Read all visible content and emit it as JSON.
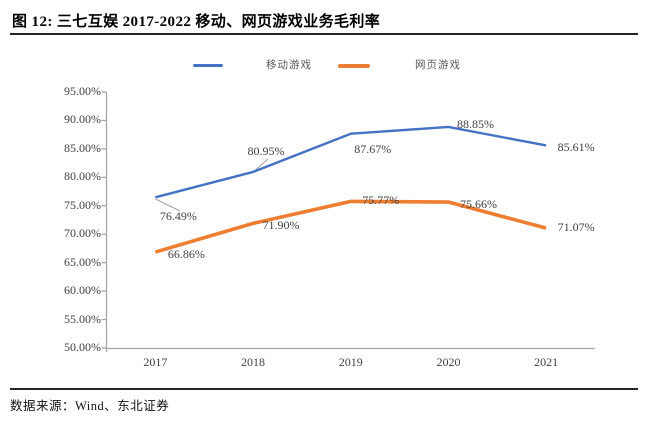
{
  "title": "图 12: 三七互娱 2017-2022 移动、网页游戏业务毛利率",
  "source": "数据来源：Wind、东北证券",
  "colors": {
    "mobile_series": "#4472C4",
    "web_series": "#ED7D31",
    "axis": "#A6A6A6",
    "data_label": "#404040",
    "rule": "#262626"
  },
  "chart_data": {
    "type": "line",
    "categories": [
      "2017",
      "2018",
      "2019",
      "2020",
      "2021"
    ],
    "series": [
      {
        "name": "移动游戏",
        "color": "#4472C4",
        "values": [
          76.49,
          80.95,
          87.67,
          88.85,
          85.61
        ],
        "labels": [
          "76.49%",
          "80.95%",
          "87.67%",
          "88.85%",
          "85.61%"
        ]
      },
      {
        "name": "网页游戏",
        "color": "#ED7D31",
        "values": [
          66.86,
          71.9,
          75.77,
          75.66,
          71.07
        ],
        "labels": [
          "66.86%",
          "71.90%",
          "75.77%",
          "75.66%",
          "71.07%"
        ]
      }
    ],
    "title": "三七互娱 2017-2022 移动、网页游戏业务毛利率",
    "xlabel": "",
    "ylabel": "",
    "ylim": [
      50,
      95
    ],
    "ytick_step": 5,
    "ytick_labels": [
      "50.00%",
      "55.00%",
      "60.00%",
      "65.00%",
      "70.00%",
      "75.00%",
      "80.00%",
      "85.00%",
      "90.00%",
      "95.00%"
    ],
    "grid": false,
    "legend_position": "top",
    "markers": false
  }
}
